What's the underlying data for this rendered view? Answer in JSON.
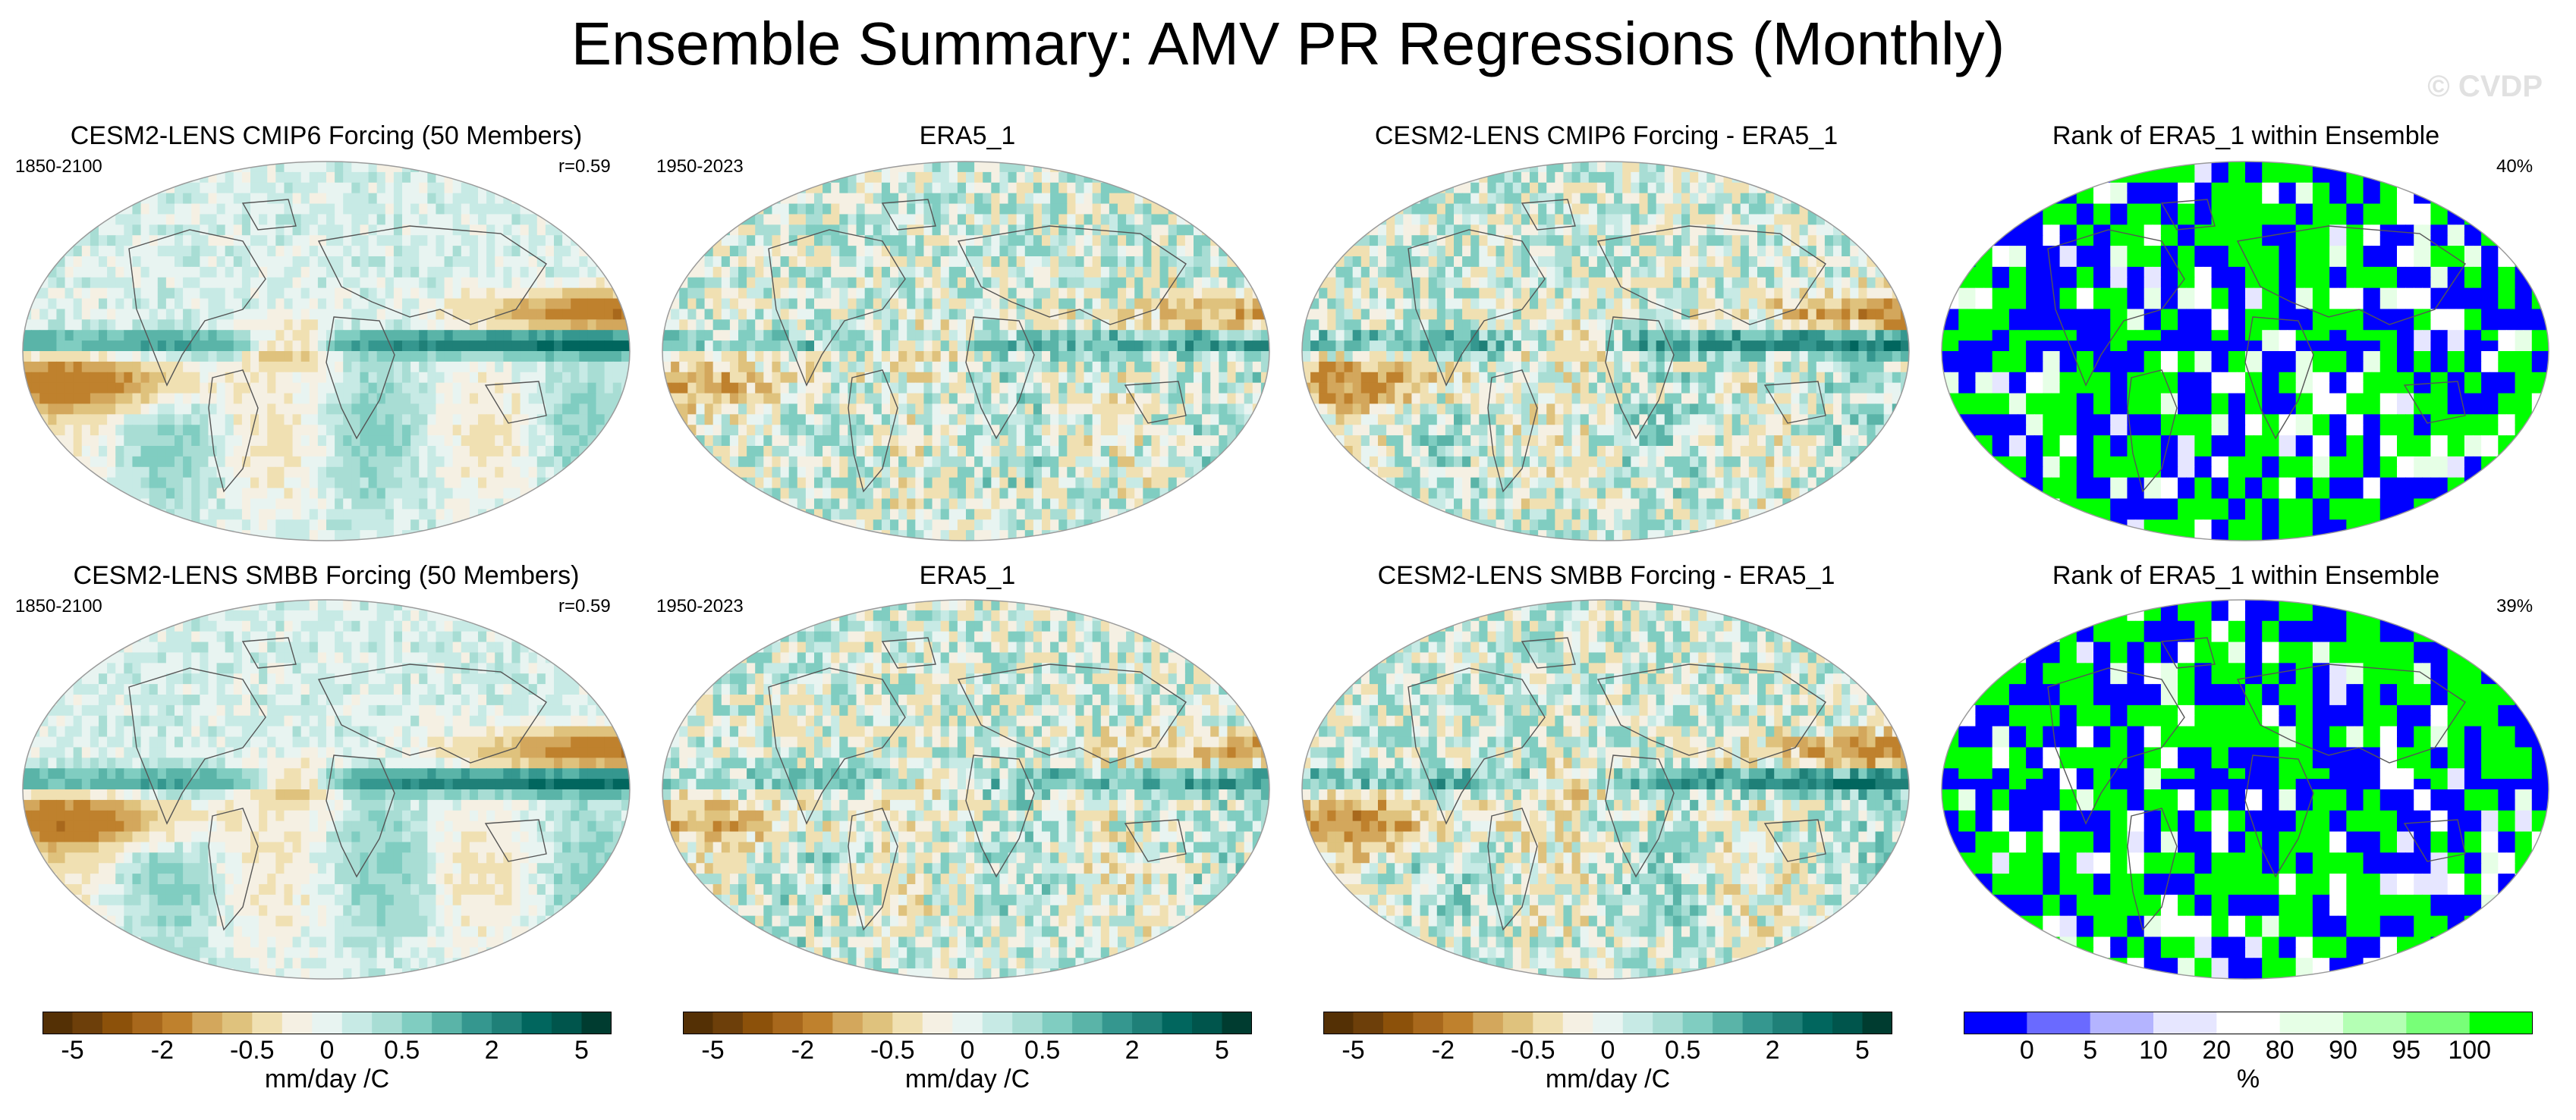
{
  "title": "Ensemble Summary: AMV PR Regressions (Monthly)",
  "watermark": "© CVDP",
  "colors": {
    "brbg": [
      "#543005",
      "#6d3f0a",
      "#8c510a",
      "#a8681c",
      "#bf812d",
      "#d3a75c",
      "#dfc27d",
      "#f0e0b2",
      "#f5f0e3",
      "#e8f4f1",
      "#c7eae5",
      "#a8ddd4",
      "#80cdc1",
      "#5ab4a8",
      "#35978f",
      "#1f8078",
      "#01665e",
      "#00554c",
      "#003c30"
    ],
    "rank": [
      "#0000ff",
      "#6a6aff",
      "#b4b4ff",
      "#e6e6ff",
      "#ffffff",
      "#e6ffe6",
      "#b4ffb4",
      "#78ff78",
      "#00ff00"
    ]
  },
  "rows": [
    {
      "panels": [
        {
          "title": "CESM2-LENS CMIP6 Forcing (50 Members)",
          "left_label": "1850-2100",
          "right_label": "r=0.59"
        },
        {
          "title": "ERA5_1",
          "left_label": "1950-2023",
          "right_label": ""
        },
        {
          "title": "CESM2-LENS CMIP6 Forcing - ERA5_1",
          "left_label": "",
          "right_label": ""
        },
        {
          "title": "Rank of ERA5_1 within Ensemble",
          "left_label": "",
          "right_label": "40%"
        }
      ]
    },
    {
      "panels": [
        {
          "title": "CESM2-LENS SMBB Forcing (50 Members)",
          "left_label": "1850-2100",
          "right_label": "r=0.59"
        },
        {
          "title": "ERA5_1",
          "left_label": "1950-2023",
          "right_label": ""
        },
        {
          "title": "CESM2-LENS SMBB Forcing - ERA5_1",
          "left_label": "",
          "right_label": ""
        },
        {
          "title": "Rank of ERA5_1 within Ensemble",
          "left_label": "",
          "right_label": "39%"
        }
      ]
    }
  ],
  "colorbars": [
    {
      "ticks": [
        "-5",
        "-2",
        "-0.5",
        "0",
        "0.5",
        "2",
        "5"
      ],
      "label": "mm/day /C"
    },
    {
      "ticks": [
        "-5",
        "-2",
        "-0.5",
        "0",
        "0.5",
        "2",
        "5"
      ],
      "label": "mm/day /C"
    },
    {
      "ticks": [
        "-5",
        "-2",
        "-0.5",
        "0",
        "0.5",
        "2",
        "5"
      ],
      "label": "mm/day /C"
    },
    {
      "ticks": [
        "0",
        "5",
        "10",
        "20",
        "80",
        "90",
        "95",
        "100"
      ],
      "label": "%"
    }
  ],
  "chart_data": [
    {
      "type": "heatmap",
      "title": "CESM2-LENS CMIP6 Forcing (50 Members)",
      "period": "1850-2100",
      "pattern_correlation": 0.59,
      "units": "mm/day /C",
      "levels": [
        -5,
        -2,
        -0.5,
        0,
        0.5,
        2,
        5
      ]
    },
    {
      "type": "heatmap",
      "title": "ERA5_1",
      "period": "1950-2023",
      "units": "mm/day /C",
      "levels": [
        -5,
        -2,
        -0.5,
        0,
        0.5,
        2,
        5
      ]
    },
    {
      "type": "heatmap",
      "title": "CESM2-LENS CMIP6 Forcing - ERA5_1",
      "units": "mm/day /C",
      "levels": [
        -5,
        -2,
        -0.5,
        0,
        0.5,
        2,
        5
      ]
    },
    {
      "type": "heatmap",
      "title": "Rank of ERA5_1 within Ensemble",
      "percent_label": "40%",
      "units": "%",
      "levels": [
        0,
        5,
        10,
        20,
        80,
        90,
        95,
        100
      ]
    },
    {
      "type": "heatmap",
      "title": "CESM2-LENS SMBB Forcing (50 Members)",
      "period": "1850-2100",
      "pattern_correlation": 0.59,
      "units": "mm/day /C",
      "levels": [
        -5,
        -2,
        -0.5,
        0,
        0.5,
        2,
        5
      ]
    },
    {
      "type": "heatmap",
      "title": "ERA5_1",
      "period": "1950-2023",
      "units": "mm/day /C",
      "levels": [
        -5,
        -2,
        -0.5,
        0,
        0.5,
        2,
        5
      ]
    },
    {
      "type": "heatmap",
      "title": "CESM2-LENS SMBB Forcing - ERA5_1",
      "units": "mm/day /C",
      "levels": [
        -5,
        -2,
        -0.5,
        0,
        0.5,
        2,
        5
      ]
    },
    {
      "type": "heatmap",
      "title": "Rank of ERA5_1 within Ensemble",
      "percent_label": "39%",
      "units": "%",
      "levels": [
        0,
        5,
        10,
        20,
        80,
        90,
        95,
        100
      ]
    }
  ]
}
